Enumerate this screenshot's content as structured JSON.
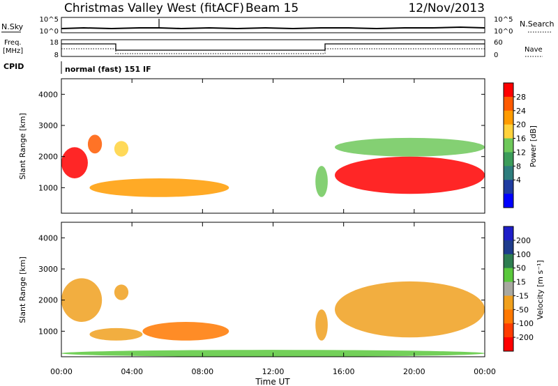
{
  "header": {
    "title": "Christmas Valley West (fitACF)",
    "beam": "Beam 15",
    "date": "12/Nov/2013"
  },
  "top_panels": {
    "nsky_label": "N.Sky",
    "nsearch_label": "N.Search",
    "count_ticks": [
      "10^5",
      "10^0"
    ],
    "freq_label": "Freq.",
    "freq_unit": "[MHz]",
    "freq_ticks": [
      "18",
      "8"
    ],
    "nave_label": "Nave",
    "nave_ticks": [
      "60",
      "0"
    ],
    "cpid_label": "CPID",
    "cpid_value": "normal (fast) 151 IF"
  },
  "colorbars": {
    "power": {
      "label": "Power [dB]",
      "ticks": [
        "28",
        "24",
        "20",
        "16",
        "12",
        "8",
        "4"
      ],
      "colors": [
        "#ff0000",
        "#ff5a00",
        "#ff9b00",
        "#ffd23c",
        "#6ec85a",
        "#3c9c5a",
        "#2e7d7d",
        "#1f3ca0",
        "#0000ff"
      ]
    },
    "velocity": {
      "label": "Velocity [m s⁻¹]",
      "ticks": [
        "200",
        "100",
        "50",
        "15",
        "-15",
        "-50",
        "-100",
        "-200"
      ],
      "colors": [
        "#1e1ec8",
        "#1e3c8c",
        "#2e7d50",
        "#5ac83c",
        "#a8a8a0",
        "#f0a01e",
        "#ff7800",
        "#ff3c00",
        "#ff0000"
      ]
    }
  },
  "chart_data": [
    {
      "type": "heatmap",
      "panel": "power",
      "ylabel": "Slant Range [km]",
      "yticks": [
        "4000",
        "3000",
        "2000",
        "1000"
      ],
      "ylim": [
        180,
        4500
      ],
      "xlabel": "Time UT",
      "xticks": [
        "00:00",
        "04:00",
        "08:00",
        "12:00",
        "16:00",
        "20:00",
        "00:00"
      ],
      "xlim_hours": [
        0,
        24
      ],
      "regions": [
        {
          "t": [
            0.0,
            1.5
          ],
          "r": [
            1300,
            2300
          ],
          "value": "28"
        },
        {
          "t": [
            1.5,
            2.3
          ],
          "r": [
            2100,
            2700
          ],
          "value": "24"
        },
        {
          "t": [
            3.0,
            3.8
          ],
          "r": [
            2000,
            2500
          ],
          "value": "16"
        },
        {
          "t": [
            1.6,
            9.5
          ],
          "r": [
            700,
            1300
          ],
          "value": "20"
        },
        {
          "t": [
            14.4,
            15.1
          ],
          "r": [
            700,
            1700
          ],
          "value": "12"
        },
        {
          "t": [
            15.5,
            24.0
          ],
          "r": [
            800,
            2000
          ],
          "value": "28"
        },
        {
          "t": [
            15.5,
            24.0
          ],
          "r": [
            2000,
            2600
          ],
          "value": "12"
        }
      ]
    },
    {
      "type": "heatmap",
      "panel": "velocity",
      "ylabel": "Slant Range [km]",
      "yticks": [
        "4000",
        "3000",
        "2000",
        "1000"
      ],
      "ylim": [
        180,
        4500
      ],
      "xlabel": "Time UT",
      "xticks": [
        "00:00",
        "04:00",
        "08:00",
        "12:00",
        "16:00",
        "20:00",
        "00:00"
      ],
      "xlim_hours": [
        0,
        24
      ],
      "regions": [
        {
          "t": [
            0.0,
            2.3
          ],
          "r": [
            1300,
            2700
          ],
          "value": "-15"
        },
        {
          "t": [
            3.0,
            3.8
          ],
          "r": [
            2000,
            2500
          ],
          "value": "-15"
        },
        {
          "t": [
            1.6,
            4.6
          ],
          "r": [
            700,
            1100
          ],
          "value": "-15"
        },
        {
          "t": [
            4.6,
            9.5
          ],
          "r": [
            700,
            1300
          ],
          "value": "-50"
        },
        {
          "t": [
            14.4,
            15.1
          ],
          "r": [
            700,
            1700
          ],
          "value": "-15"
        },
        {
          "t": [
            15.5,
            24.0
          ],
          "r": [
            800,
            2600
          ],
          "value": "-15"
        },
        {
          "t": [
            0.0,
            24.0
          ],
          "r": [
            180,
            400
          ],
          "value": "50"
        }
      ]
    }
  ]
}
